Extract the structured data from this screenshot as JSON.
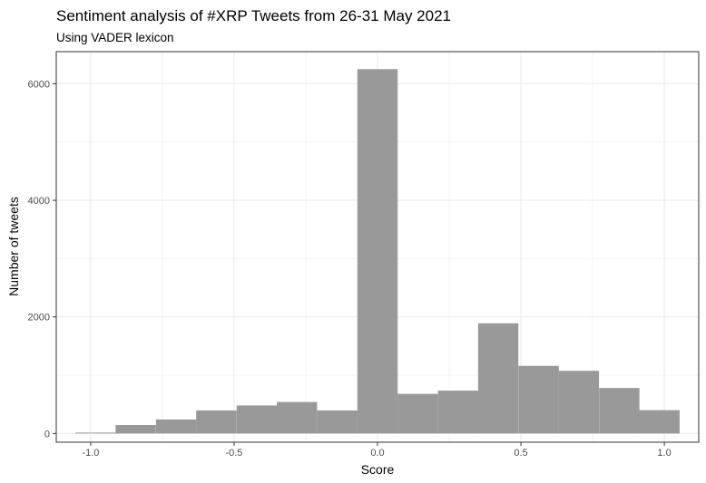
{
  "chart_data": {
    "type": "bar",
    "title": "Sentiment analysis of #XRP Tweets from 26-31 May 2021",
    "subtitle": "Using VADER lexicon",
    "xlabel": "Score",
    "ylabel": "Number of tweets",
    "xlim": [
      -1.12,
      1.12
    ],
    "ylim": [
      -150,
      6550
    ],
    "x_ticks": [
      -1.0,
      -0.5,
      0.0,
      0.5,
      1.0
    ],
    "x_tick_labels": [
      "-1.0",
      "-0.5",
      "0.0",
      "0.5",
      "1.0"
    ],
    "y_ticks": [
      0,
      2000,
      4000,
      6000
    ],
    "y_tick_labels": [
      "0",
      "2000",
      "4000",
      "6000"
    ],
    "bin_width": 0.1405,
    "bins": [
      {
        "x": -0.983,
        "count": 15
      },
      {
        "x": -0.843,
        "count": 145
      },
      {
        "x": -0.702,
        "count": 240
      },
      {
        "x": -0.562,
        "count": 395
      },
      {
        "x": -0.421,
        "count": 480
      },
      {
        "x": -0.281,
        "count": 540
      },
      {
        "x": -0.14,
        "count": 395
      },
      {
        "x": 0.0,
        "count": 6250
      },
      {
        "x": 0.14,
        "count": 680
      },
      {
        "x": 0.281,
        "count": 735
      },
      {
        "x": 0.421,
        "count": 1890
      },
      {
        "x": 0.562,
        "count": 1160
      },
      {
        "x": 0.702,
        "count": 1075
      },
      {
        "x": 0.843,
        "count": 780
      },
      {
        "x": 0.983,
        "count": 400
      }
    ],
    "grid": true,
    "bar_color": "#999999",
    "grid_color": "#ebebeb",
    "axis_text_color": "#4d4d4d",
    "border_color": "#333333"
  }
}
